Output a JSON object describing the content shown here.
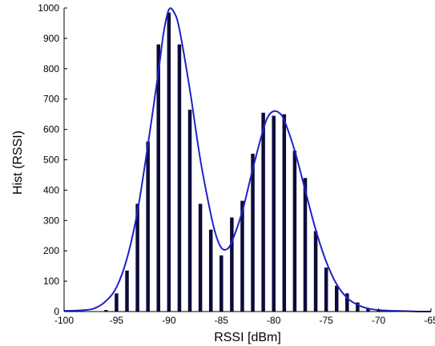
{
  "chart_data": {
    "type": "bar",
    "title": "",
    "xlabel": "RSSI [dBm]",
    "ylabel": "Hist (RSSI)",
    "xlim": [
      -100,
      -65
    ],
    "ylim": [
      0,
      1000
    ],
    "xticks": [
      -100,
      -95,
      -90,
      -85,
      -80,
      -75,
      -70,
      -65
    ],
    "yticks": [
      0,
      100,
      200,
      300,
      400,
      500,
      600,
      700,
      800,
      900,
      1000
    ],
    "grid": false,
    "bar_color": "#0b0b3b",
    "line_color": "#1e23c8",
    "series": [
      {
        "type": "bar",
        "x": [
          -96,
          -95,
          -94,
          -93,
          -92,
          -91,
          -90,
          -89,
          -88,
          -87,
          -86,
          -85,
          -84,
          -83,
          -82,
          -81,
          -80,
          -79,
          -78,
          -77,
          -76,
          -75,
          -74,
          -73,
          -72,
          -71,
          -70,
          -69,
          -68,
          -67,
          -66
        ],
        "values": [
          5,
          60,
          135,
          355,
          560,
          880,
          985,
          880,
          665,
          355,
          270,
          185,
          310,
          365,
          520,
          655,
          645,
          650,
          530,
          440,
          265,
          145,
          85,
          60,
          30,
          12,
          5,
          2,
          2,
          1,
          0
        ]
      },
      {
        "type": "line",
        "x": [
          -100,
          -98,
          -97,
          -96,
          -95,
          -94,
          -93,
          -92,
          -91,
          -90.5,
          -90,
          -89.5,
          -89,
          -88,
          -87,
          -86,
          -85.5,
          -85,
          -84.5,
          -84,
          -83,
          -82,
          -81,
          -80.5,
          -80,
          -79.5,
          -79,
          -78,
          -77,
          -76,
          -75,
          -74,
          -73,
          -72,
          -71,
          -70,
          -69,
          -68,
          -67,
          -66,
          -65
        ],
        "values": [
          2,
          5,
          12,
          35,
          80,
          175,
          330,
          550,
          790,
          920,
          995,
          985,
          930,
          730,
          500,
          320,
          250,
          210,
          205,
          230,
          330,
          470,
          600,
          645,
          660,
          655,
          630,
          530,
          400,
          270,
          165,
          90,
          45,
          22,
          10,
          5,
          3,
          2,
          1,
          0,
          0
        ]
      }
    ]
  }
}
